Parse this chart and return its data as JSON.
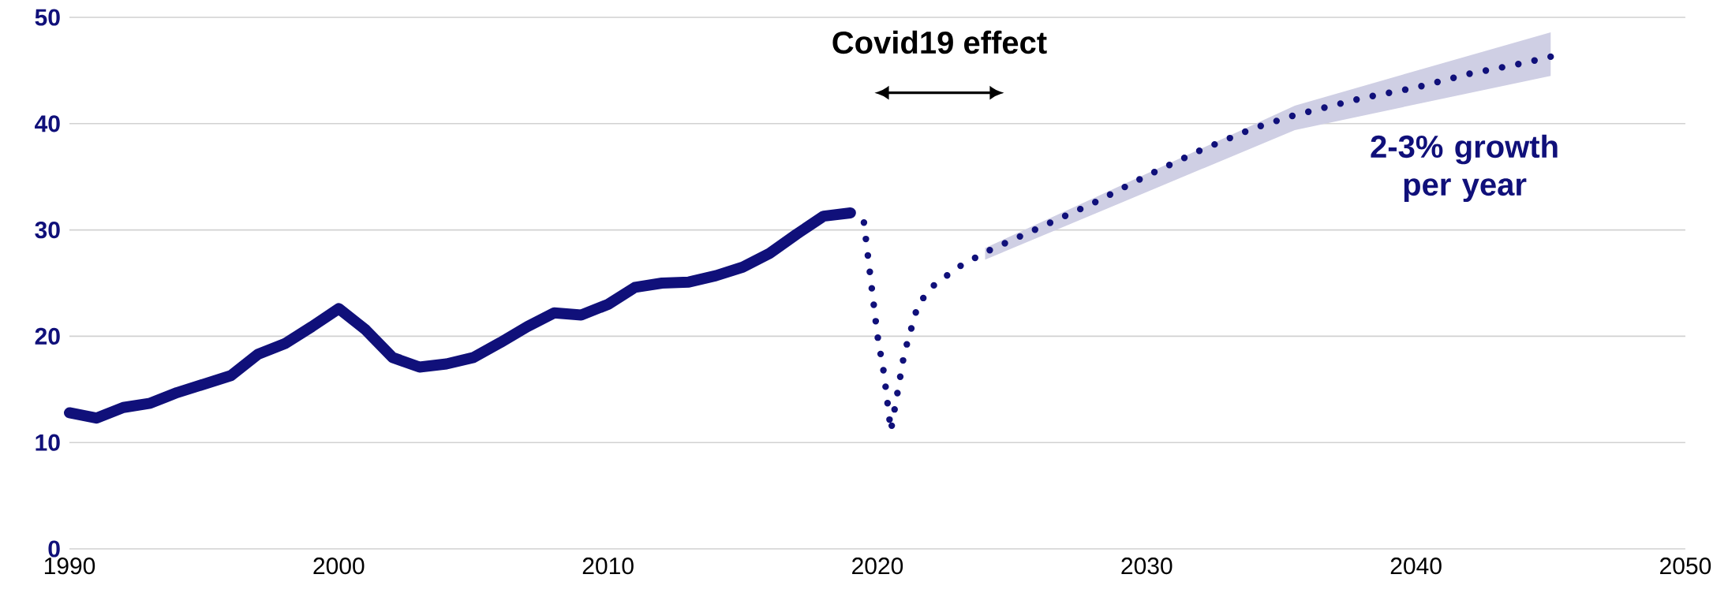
{
  "chart_data": {
    "type": "line",
    "series": [
      {
        "color": "#10107a",
        "line_style": "solid",
        "x": [
          1990,
          1991,
          1992,
          1993,
          1994,
          1995,
          1996,
          1997,
          1998,
          1999,
          2000,
          2001,
          2002,
          2003,
          2004,
          2005,
          2006,
          2007,
          2008,
          2009,
          2010,
          2011,
          2012,
          2013,
          2014,
          2015,
          2016,
          2017,
          2018,
          2019
        ],
        "values": [
          12.8,
          12.3,
          13.3,
          13.7,
          14.7,
          15.5,
          16.3,
          18.3,
          19.3,
          20.9,
          22.6,
          20.6,
          18.0,
          17.1,
          17.4,
          18.0,
          19.4,
          20.9,
          22.2,
          22.0,
          23.0,
          24.6,
          25.0,
          25.1,
          25.7,
          26.5,
          27.8,
          29.6,
          31.3,
          31.6
        ]
      },
      {
        "color": "#10107a",
        "line_style": "dotted",
        "x": [
          2019,
          2019.5,
          2019.75,
          2020,
          2020.25,
          2020.5,
          2021,
          2021.5,
          2022,
          2023,
          2024,
          2026,
          2028,
          2030,
          2032,
          2034,
          2035.5,
          2038,
          2040,
          2042,
          2044,
          2045
        ],
        "values": [
          31.6,
          30.7,
          25.4,
          20.1,
          16.4,
          11.1,
          18.4,
          22.9,
          24.6,
          26.5,
          27.9,
          30.2,
          32.5,
          35.1,
          37.5,
          39.6,
          40.8,
          42.4,
          43.4,
          44.7,
          45.7,
          46.3
        ],
        "lower": [
          null,
          null,
          null,
          null,
          null,
          null,
          null,
          null,
          null,
          null,
          27.2,
          null,
          null,
          null,
          null,
          null,
          39.4,
          null,
          null,
          null,
          null,
          44.5
        ],
        "upper": [
          null,
          null,
          null,
          null,
          null,
          null,
          null,
          null,
          null,
          null,
          28.3,
          null,
          null,
          null,
          null,
          null,
          41.7,
          null,
          null,
          null,
          null,
          48.6
        ]
      }
    ],
    "xlim": [
      1990,
      2050
    ],
    "xticks": [
      1990,
      2000,
      2010,
      2020,
      2030,
      2040,
      2050
    ],
    "ylim": [
      0,
      50
    ],
    "yticks": [
      0,
      10,
      20,
      30,
      40,
      50
    ],
    "grid": "y",
    "annotations": [
      "Covid19 effect",
      "2-3% growth per year"
    ]
  }
}
